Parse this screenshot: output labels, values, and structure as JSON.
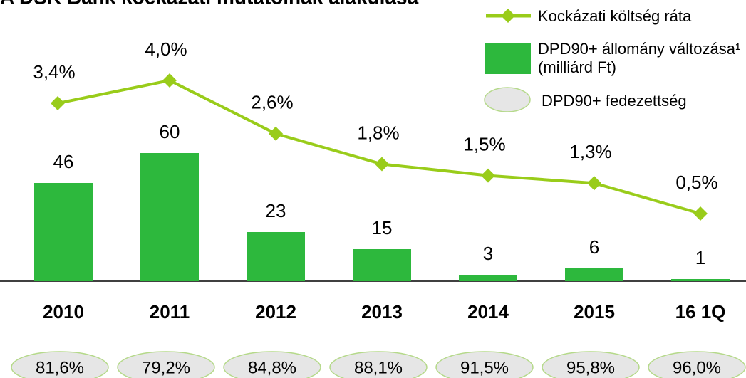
{
  "chart_data": {
    "type": "bar",
    "title": "A DSK Bank kockázati mutatóinak alakulása",
    "categories": [
      "2010",
      "2011",
      "2012",
      "2013",
      "2014",
      "2015",
      "16 1Q"
    ],
    "series": [
      {
        "name": "Kockázati költség ráta",
        "type": "line",
        "color": "#99cc1a",
        "values": [
          3.4,
          4.0,
          2.6,
          1.8,
          1.5,
          1.3,
          0.5
        ],
        "value_labels": [
          "3,4%",
          "4,0%",
          "2,6%",
          "1,8%",
          "1,5%",
          "1,3%",
          "0,5%"
        ]
      },
      {
        "name": "DPD90+ állomány változása¹ (milliárd Ft)",
        "type": "bar",
        "color": "#2db83d",
        "values": [
          46,
          60,
          23,
          15,
          3,
          6,
          1
        ]
      },
      {
        "name": "DPD90+ fedezettség",
        "type": "ellipse",
        "color": "#e6e6e6",
        "values": [
          81.6,
          79.2,
          84.8,
          88.1,
          91.5,
          95.8,
          96.0
        ],
        "value_labels": [
          "81,6%",
          "79,2%",
          "84,8%",
          "88,1%",
          "91,5%",
          "95,8%",
          "96,0%"
        ]
      }
    ]
  }
}
